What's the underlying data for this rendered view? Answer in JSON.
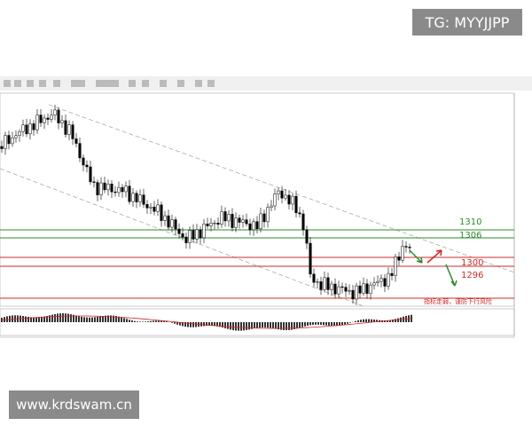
{
  "watermark_top": "TG: MYYJJPP",
  "watermark_bottom": "www.krdswam.cn",
  "levels": [
    "1310",
    "1306",
    "1300",
    "1296"
  ],
  "annotation": "指标走弱，谨防下行风险"
}
